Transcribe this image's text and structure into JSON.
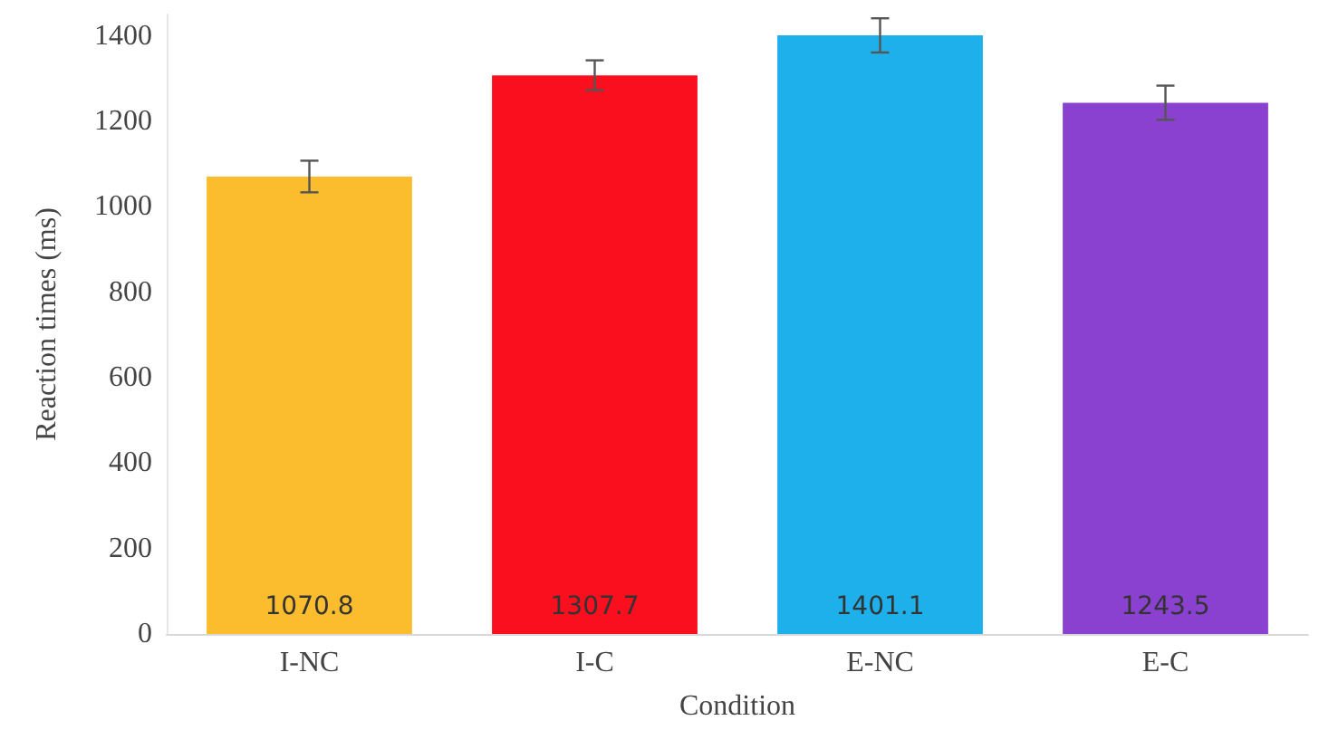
{
  "chart_data": {
    "type": "bar",
    "xlabel": "Condition",
    "ylabel": "Reaction times (ms)",
    "categories": [
      "I-NC",
      "I-C",
      "E-NC",
      "E-C"
    ],
    "values": [
      1070.8,
      1307.7,
      1401.1,
      1243.5
    ],
    "colors": [
      "#fbbc2e",
      "#fa0f1f",
      "#1eb0ea",
      "#8b41d0"
    ],
    "errors": [
      37,
      35,
      40,
      40
    ],
    "ylim": [
      0,
      1450
    ],
    "yticks": [
      0,
      200,
      400,
      600,
      800,
      1000,
      1200,
      1400
    ],
    "data_labels": true,
    "grid": false
  }
}
